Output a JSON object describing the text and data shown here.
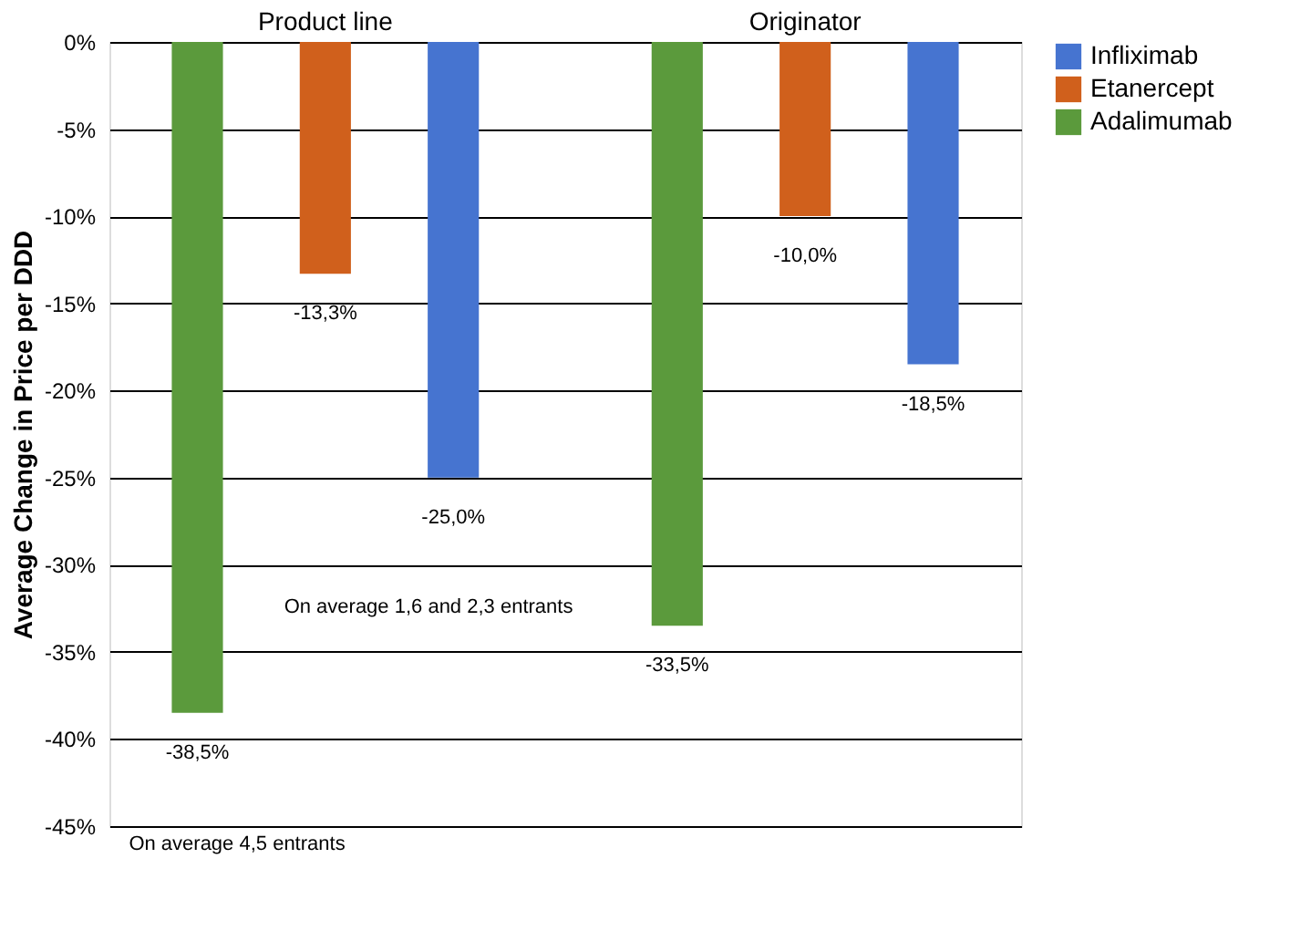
{
  "chart_data": {
    "type": "bar",
    "ylabel": "Average Change in Price per DDD",
    "categories": [
      "Product line",
      "Originator"
    ],
    "series": [
      {
        "name": "Adalimumab",
        "color": "#5b9a3c",
        "values": [
          -38.5,
          -33.5
        ],
        "value_labels": [
          "-38,5%",
          "-33,5%"
        ]
      },
      {
        "name": "Etanercept",
        "color": "#d0601c",
        "values": [
          -13.3,
          -10.0
        ],
        "value_labels": [
          "-13,3%",
          "-10,0%"
        ]
      },
      {
        "name": "Infliximab",
        "color": "#4674d0",
        "values": [
          -25.0,
          -18.5
        ],
        "value_labels": [
          "-25,0%",
          "-18,5%"
        ]
      }
    ],
    "ylim": [
      -45,
      0
    ],
    "yticks": [
      {
        "value": 0,
        "label": "0%"
      },
      {
        "value": -5,
        "label": "-5%"
      },
      {
        "value": -10,
        "label": "-10%"
      },
      {
        "value": -15,
        "label": "-15%"
      },
      {
        "value": -20,
        "label": "-20%"
      },
      {
        "value": -25,
        "label": "-25%"
      },
      {
        "value": -30,
        "label": "-30%"
      },
      {
        "value": -35,
        "label": "-35%"
      },
      {
        "value": -40,
        "label": "-40%"
      },
      {
        "value": -45,
        "label": "-45%"
      }
    ],
    "annotations": [
      "On average 1,6 and 2,3 entrants",
      "On average 4,5 entrants"
    ],
    "grid": "y",
    "legend": "right"
  }
}
